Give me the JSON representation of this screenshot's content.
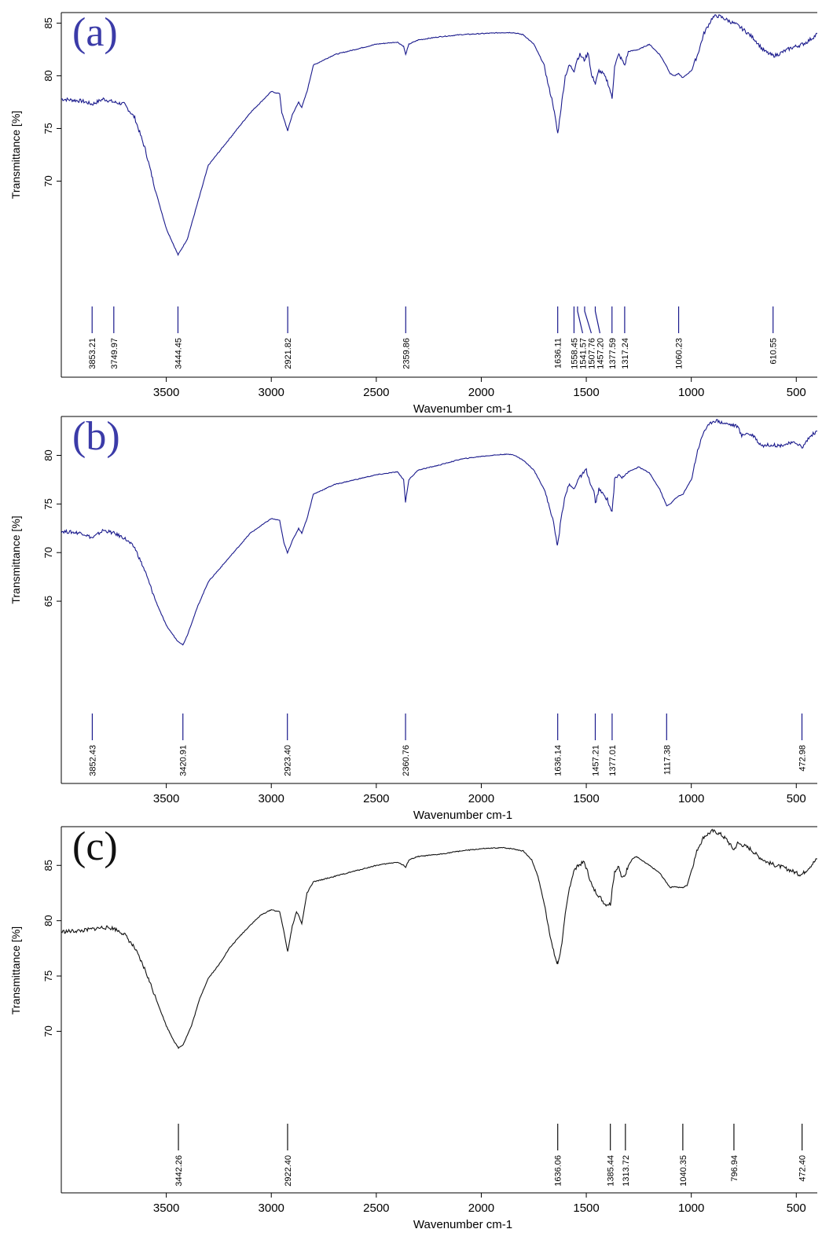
{
  "chart_data": [
    {
      "type": "line",
      "panel_label": "(a)",
      "label_color": "#3b3ba8",
      "line_color": "#1a1a8c",
      "xlabel": "Wavenumber cm-1",
      "ylabel": "Transmittance [%]",
      "xlim": [
        4000,
        400
      ],
      "x_reversed": true,
      "ylim": [
        59,
        86
      ],
      "x_ticks": [
        3500,
        3000,
        2500,
        2000,
        1500,
        1000,
        500
      ],
      "y_ticks": [
        70,
        75,
        80,
        85
      ],
      "series": [
        {
          "x": [
            4000,
            3900,
            3853,
            3800,
            3750,
            3700,
            3650,
            3600,
            3550,
            3500,
            3444,
            3400,
            3350,
            3300,
            3200,
            3100,
            3000,
            2960,
            2950,
            2922,
            2900,
            2870,
            2855,
            2830,
            2800,
            2750,
            2700,
            2600,
            2500,
            2400,
            2370,
            2360,
            2345,
            2300,
            2200,
            2100,
            2000,
            1900,
            1850,
            1800,
            1750,
            1700,
            1680,
            1660,
            1640,
            1636,
            1620,
            1600,
            1580,
            1558,
            1545,
            1530,
            1510,
            1490,
            1475,
            1460,
            1457,
            1440,
            1420,
            1400,
            1385,
            1377,
            1365,
            1345,
            1330,
            1317,
            1300,
            1250,
            1200,
            1150,
            1120,
            1100,
            1080,
            1060,
            1040,
            1000,
            970,
            940,
            900,
            880,
            860,
            820,
            780,
            740,
            700,
            660,
            640,
            620,
            610,
            590,
            560,
            530,
            500,
            470,
            450,
            430,
            410,
            400
          ],
          "y": [
            77.8,
            77.6,
            77.3,
            77.8,
            77.5,
            77.3,
            76.0,
            73.0,
            69.0,
            65.5,
            63.0,
            64.5,
            68.0,
            71.5,
            74.0,
            76.5,
            78.5,
            78.3,
            76.5,
            74.8,
            76.3,
            77.5,
            77.0,
            78.5,
            81.0,
            81.5,
            82.0,
            82.5,
            83.0,
            83.2,
            82.8,
            82.0,
            83.0,
            83.4,
            83.7,
            83.9,
            84.0,
            84.1,
            84.1,
            83.9,
            83.0,
            81.0,
            79.0,
            77.5,
            75.0,
            74.5,
            77.0,
            80.0,
            81.0,
            80.5,
            81.5,
            82.0,
            81.5,
            82.2,
            80.0,
            79.5,
            79.2,
            80.5,
            80.2,
            79.5,
            78.5,
            77.8,
            81.0,
            82.0,
            81.5,
            81.0,
            82.3,
            82.5,
            83.0,
            82.0,
            81.0,
            80.2,
            80.0,
            80.2,
            79.8,
            80.5,
            82.0,
            84.0,
            85.5,
            85.7,
            85.6,
            85.2,
            84.8,
            84.2,
            83.5,
            82.5,
            82.2,
            82.0,
            81.9,
            82.0,
            82.3,
            82.6,
            82.8,
            83.0,
            83.2,
            83.5,
            83.8,
            84.0
          ]
        }
      ],
      "peaks": [
        "3853.21",
        "3749.97",
        "3444.45",
        "2921.82",
        "2359.86",
        "1636.11",
        "1558.45",
        "1541.57",
        "1507.76",
        "1457.20",
        "1377.59",
        "1317.24",
        "1060.23",
        "610.55"
      ]
    },
    {
      "type": "line",
      "panel_label": "(b)",
      "label_color": "#3b3ba8",
      "line_color": "#1a1a8c",
      "xlabel": "Wavenumber cm-1",
      "ylabel": "Transmittance [%]",
      "xlim": [
        4000,
        400
      ],
      "x_reversed": true,
      "ylim": [
        54.5,
        84
      ],
      "x_ticks": [
        3500,
        3000,
        2500,
        2000,
        1500,
        1000,
        500
      ],
      "y_ticks": [
        65,
        70,
        75,
        80
      ],
      "series": [
        {
          "x": [
            4000,
            3900,
            3852,
            3800,
            3750,
            3700,
            3650,
            3600,
            3550,
            3500,
            3450,
            3421,
            3400,
            3350,
            3300,
            3200,
            3100,
            3000,
            2960,
            2940,
            2923,
            2900,
            2870,
            2855,
            2830,
            2800,
            2750,
            2700,
            2600,
            2500,
            2400,
            2370,
            2361,
            2345,
            2300,
            2200,
            2100,
            2000,
            1900,
            1850,
            1800,
            1750,
            1700,
            1680,
            1660,
            1640,
            1636,
            1620,
            1600,
            1580,
            1560,
            1540,
            1520,
            1500,
            1480,
            1460,
            1457,
            1440,
            1420,
            1400,
            1385,
            1377,
            1365,
            1345,
            1330,
            1300,
            1250,
            1200,
            1150,
            1117,
            1100,
            1080,
            1060,
            1040,
            1000,
            970,
            940,
            900,
            880,
            860,
            820,
            780,
            760,
            740,
            700,
            680,
            660,
            620,
            580,
            540,
            500,
            480,
            473,
            460,
            440,
            420,
            400
          ],
          "y": [
            72.2,
            72.0,
            71.5,
            72.3,
            72.0,
            71.5,
            70.5,
            68.0,
            65.0,
            62.5,
            61.0,
            60.5,
            61.5,
            64.5,
            67.0,
            69.5,
            72.0,
            73.5,
            73.3,
            71.0,
            70.0,
            71.2,
            72.5,
            72.0,
            73.5,
            76.0,
            76.5,
            77.0,
            77.5,
            78.0,
            78.3,
            77.5,
            75.2,
            77.5,
            78.5,
            79.0,
            79.6,
            79.9,
            80.1,
            80.1,
            79.5,
            78.5,
            76.5,
            75.0,
            73.5,
            71.0,
            70.8,
            73.5,
            76.0,
            77.0,
            76.5,
            77.5,
            78.0,
            78.5,
            77.0,
            76.0,
            75.0,
            76.5,
            76.0,
            75.5,
            74.5,
            74.2,
            77.5,
            78.0,
            77.8,
            78.3,
            78.8,
            78.2,
            76.5,
            74.8,
            75.0,
            75.5,
            75.8,
            76.0,
            77.5,
            80.5,
            82.5,
            83.5,
            83.6,
            83.4,
            83.2,
            83.0,
            82.0,
            82.3,
            82.0,
            81.3,
            81.0,
            81.1,
            81.0,
            81.2,
            81.3,
            81.0,
            80.7,
            81.2,
            81.8,
            82.2,
            82.5
          ]
        }
      ],
      "peaks": [
        "3852.43",
        "3420.91",
        "2923.40",
        "2360.76",
        "1636.14",
        "1457.21",
        "1377.01",
        "1117.38",
        "472.98"
      ]
    },
    {
      "type": "line",
      "panel_label": "(c)",
      "label_color": "#111111",
      "line_color": "#111111",
      "xlabel": "Wavenumber cm-1",
      "ylabel": "Transmittance [%]",
      "xlim": [
        4000,
        400
      ],
      "x_reversed": true,
      "ylim": [
        62.5,
        88.5
      ],
      "x_ticks": [
        3500,
        3000,
        2500,
        2000,
        1500,
        1000,
        500
      ],
      "y_ticks": [
        70,
        75,
        80,
        85
      ],
      "series": [
        {
          "x": [
            4000,
            3900,
            3800,
            3750,
            3700,
            3650,
            3600,
            3550,
            3500,
            3460,
            3442,
            3420,
            3380,
            3340,
            3300,
            3250,
            3200,
            3150,
            3100,
            3050,
            3000,
            2960,
            2945,
            2922,
            2900,
            2880,
            2870,
            2855,
            2830,
            2800,
            2700,
            2600,
            2500,
            2400,
            2370,
            2360,
            2345,
            2300,
            2200,
            2100,
            2000,
            1900,
            1850,
            1800,
            1760,
            1730,
            1700,
            1680,
            1660,
            1640,
            1636,
            1620,
            1600,
            1580,
            1560,
            1530,
            1510,
            1490,
            1470,
            1450,
            1430,
            1410,
            1385,
            1365,
            1345,
            1330,
            1314,
            1300,
            1280,
            1260,
            1240,
            1200,
            1150,
            1120,
            1100,
            1080,
            1060,
            1040,
            1020,
            1000,
            970,
            940,
            900,
            880,
            860,
            830,
            820,
            797,
            780,
            750,
            720,
            680,
            640,
            600,
            560,
            520,
            490,
            472,
            450,
            430,
            410,
            400
          ],
          "y": [
            79.0,
            79.1,
            79.4,
            79.3,
            78.8,
            77.5,
            75.5,
            73.0,
            70.5,
            69.0,
            68.5,
            68.8,
            70.5,
            73.0,
            74.8,
            76.0,
            77.5,
            78.6,
            79.6,
            80.5,
            81.0,
            80.8,
            79.5,
            77.2,
            79.5,
            80.8,
            80.5,
            79.7,
            82.5,
            83.5,
            84.0,
            84.5,
            85.0,
            85.3,
            85.0,
            84.8,
            85.5,
            85.8,
            86.0,
            86.3,
            86.5,
            86.6,
            86.5,
            86.3,
            85.5,
            84.0,
            81.5,
            79.5,
            77.5,
            76.2,
            76.1,
            77.5,
            80.5,
            83.0,
            84.5,
            85.1,
            85.3,
            84.2,
            83.0,
            82.5,
            82.0,
            81.5,
            81.5,
            84.5,
            84.8,
            83.8,
            84.2,
            85.0,
            85.6,
            85.8,
            85.5,
            85.0,
            84.3,
            83.5,
            83.0,
            83.1,
            83.0,
            83.0,
            83.2,
            84.5,
            86.5,
            87.6,
            88.1,
            88.0,
            87.8,
            87.3,
            87.0,
            86.4,
            87.0,
            86.8,
            86.5,
            85.8,
            85.3,
            85.0,
            84.8,
            84.5,
            84.2,
            84.2,
            84.6,
            85.0,
            85.4,
            85.6
          ]
        }
      ],
      "peaks": [
        "3442.26",
        "2922.40",
        "1636.06",
        "1385.44",
        "1313.72",
        "1040.35",
        "796.94",
        "472.40"
      ]
    }
  ]
}
